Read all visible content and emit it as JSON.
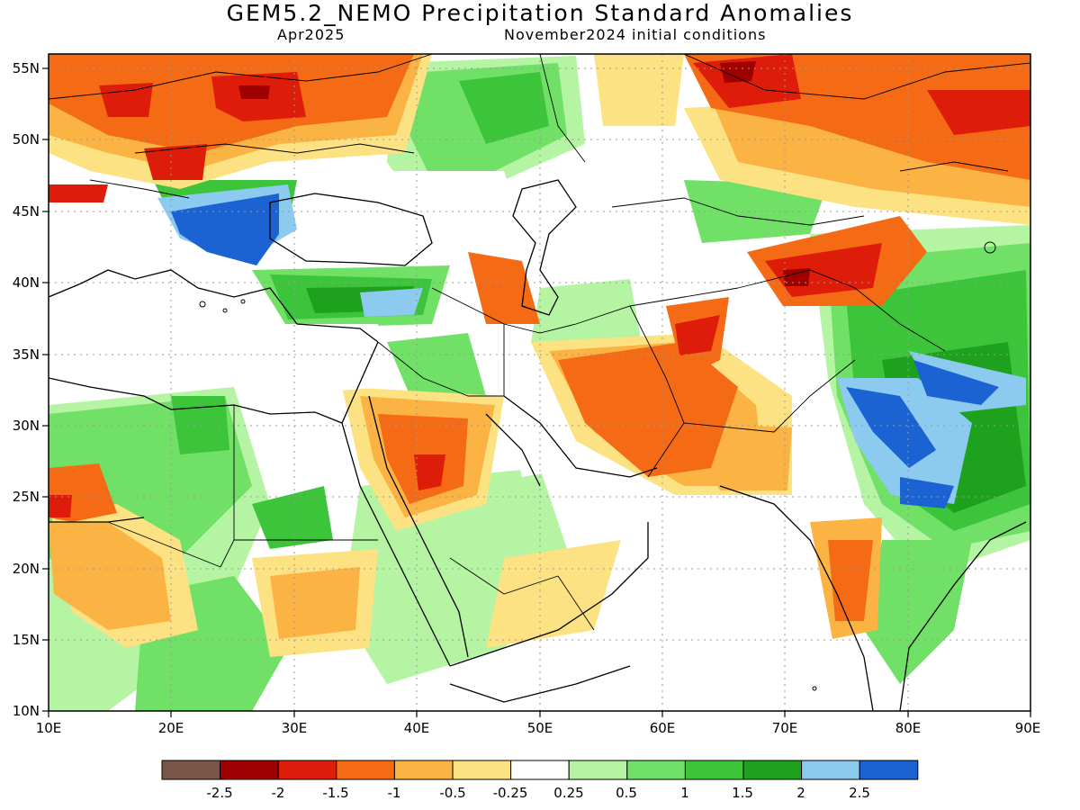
{
  "title": "GEM5.2_NEMO Precipitation Standard Anomalies",
  "subtitle_left": "Apr2025",
  "subtitle_right": "November2024 initial conditions",
  "axes": {
    "lon_ticks": [
      "10E",
      "20E",
      "30E",
      "40E",
      "50E",
      "60E",
      "70E",
      "80E",
      "90E"
    ],
    "lat_ticks": [
      "55N",
      "50N",
      "45N",
      "40N",
      "35N",
      "30N",
      "25N",
      "20N",
      "15N",
      "10N"
    ]
  },
  "legend": {
    "labels": [
      "-2.5",
      "-2",
      "-1.5",
      "-1",
      "-0.5",
      "-0.25",
      "0.25",
      "0.5",
      "1",
      "1.5",
      "2",
      "2.5"
    ],
    "colors": [
      "#7a5648",
      "#9e0000",
      "#de1c0a",
      "#f56a14",
      "#fbb343",
      "#fde283",
      "#ffffff",
      "#b4f4a2",
      "#70e066",
      "#3cc43a",
      "#1ea21e",
      "#8ccaf0",
      "#1b62d2"
    ]
  },
  "map": {
    "lon_range": [
      10,
      90
    ],
    "lat_range": [
      10,
      56
    ],
    "grid": "dotted",
    "anomaly_regions": [
      {
        "name": "south-russia-kazakh-dry",
        "color": "#f56a14"
      },
      {
        "name": "central-europe-dry",
        "color": "#de1c0a"
      },
      {
        "name": "balkans-wet",
        "color": "#1b62d2"
      },
      {
        "name": "iran-afghan-dry",
        "color": "#f56a14"
      },
      {
        "name": "saudi-dry",
        "color": "#f56a14"
      },
      {
        "name": "india-east-wet",
        "color": "#1b62d2"
      },
      {
        "name": "turkey-wet",
        "color": "#3cc43a"
      },
      {
        "name": "north-africa-wet",
        "color": "#70e066"
      }
    ]
  }
}
